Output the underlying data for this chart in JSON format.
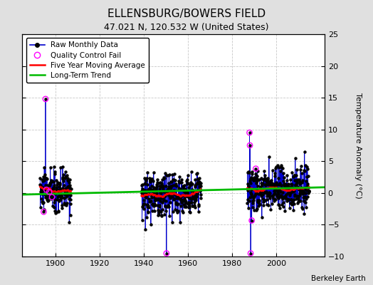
{
  "title": "ELLENSBURG/BOWERS FIELD",
  "subtitle": "47.021 N, 120.532 W (United States)",
  "ylabel": "Temperature Anomaly (°C)",
  "credit": "Berkeley Earth",
  "xlim": [
    1885,
    2022
  ],
  "ylim": [
    -10,
    25
  ],
  "yticks": [
    -10,
    -5,
    0,
    5,
    10,
    15,
    20,
    25
  ],
  "xticks": [
    1900,
    1920,
    1940,
    1960,
    1980,
    2000
  ],
  "bg_color": "#e0e0e0",
  "plot_bg_color": "#ffffff",
  "raw_color": "#0000cc",
  "qc_color": "#ff00ff",
  "mavg_color": "#ff0000",
  "trend_color": "#00bb00",
  "grid_color": "#c8c8c8",
  "seg1_x_start": 1893,
  "seg1_x_end": 1907,
  "seg2_x_start": 1939,
  "seg2_x_end": 1966,
  "seg3_x_start": 1987,
  "seg3_x_end": 2015,
  "trend_x": [
    1885,
    2022
  ],
  "trend_y": [
    -0.25,
    0.9
  ]
}
